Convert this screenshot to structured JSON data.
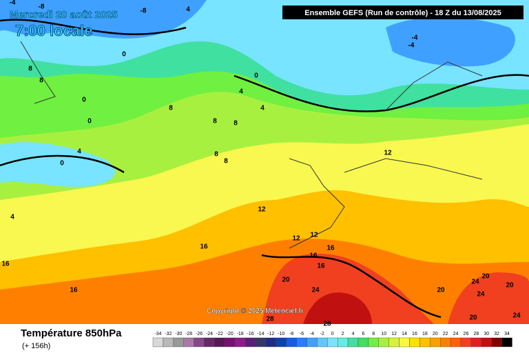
{
  "header": {
    "date": "Mercredi 20 août 2025",
    "time": "7:00 locale",
    "model": "Ensemble GEFS  (Run de contrôle)  -  18 Z du 13/08/2025"
  },
  "copyright": "Copyright © 2025 Meteociel.fr",
  "footer": {
    "title": "Température 850hPa",
    "subtitle": "(+ 156h)"
  },
  "legend": {
    "labels": [
      -34,
      -32,
      -30,
      -28,
      -26,
      -24,
      -22,
      -20,
      -18,
      -16,
      -14,
      -12,
      -10,
      -8,
      -6,
      -4,
      -2,
      0,
      2,
      4,
      6,
      8,
      10,
      12,
      14,
      16,
      18,
      20,
      22,
      24,
      26,
      28,
      30,
      32,
      34
    ],
    "colors": [
      "#d8d8d8",
      "#b8b8b8",
      "#989898",
      "#a878a8",
      "#884888",
      "#682868",
      "#581858",
      "#7a1070",
      "#901c88",
      "#5a2078",
      "#383868",
      "#202c88",
      "#1040b0",
      "#1060e0",
      "#2080ff",
      "#40a0ff",
      "#60c8ff",
      "#78e4ff",
      "#60f0e0",
      "#40e0a0",
      "#40e060",
      "#70f040",
      "#a8f040",
      "#d8f040",
      "#f8f840",
      "#ffe000",
      "#ffc000",
      "#ffa000",
      "#ff8000",
      "#ff6000",
      "#f04020",
      "#e02020",
      "#c01010",
      "#800000",
      "#000000"
    ]
  },
  "map": {
    "contour_labels": [
      -4,
      -8,
      -8,
      4,
      0,
      8,
      8,
      0,
      0,
      4,
      4,
      8,
      8,
      8,
      8,
      8,
      4,
      0,
      4,
      -4,
      -4,
      0,
      12,
      12,
      12,
      16,
      16,
      16,
      16,
      20,
      24,
      28,
      28,
      20,
      24,
      20,
      20,
      24,
      24,
      20,
      12,
      16,
      16
    ]
  }
}
